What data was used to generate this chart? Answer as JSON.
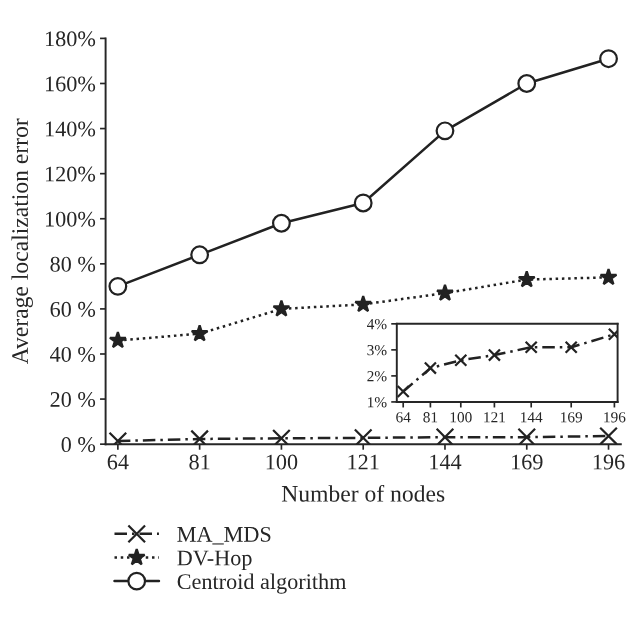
{
  "chart_data": [
    {
      "type": "line",
      "xlabel": "Number of nodes",
      "ylabel": "Average localization error",
      "categories": [
        "64",
        "81",
        "100",
        "121",
        "144",
        "169",
        "196"
      ],
      "series": [
        {
          "name": "MA_MDS",
          "color": "#222222",
          "marker": "cross",
          "line_style": "dashed",
          "values": [
            1.4,
            2.3,
            2.6,
            2.8,
            3.1,
            3.1,
            3.6
          ]
        },
        {
          "name": "DV-Hop",
          "color": "#222222",
          "marker": "star",
          "line_style": "dotted",
          "values": [
            46,
            49,
            60,
            62,
            67,
            73,
            74
          ]
        },
        {
          "name": "Centroid algorithm",
          "color": "#222222",
          "marker": "circle",
          "line_style": "solid",
          "values": [
            70,
            84,
            98,
            107,
            139,
            160,
            171
          ]
        }
      ],
      "ylim": [
        0,
        180
      ],
      "yticks": [
        {
          "value": 0,
          "label": "0 %"
        },
        {
          "value": 20,
          "label": "20 %"
        },
        {
          "value": 40,
          "label": "40 %"
        },
        {
          "value": 60,
          "label": "60 %"
        },
        {
          "value": 80,
          "label": "80 %"
        },
        {
          "value": 100,
          "label": "100%"
        },
        {
          "value": 120,
          "label": "120%"
        },
        {
          "value": 140,
          "label": "140%"
        },
        {
          "value": 160,
          "label": "160%"
        },
        {
          "value": 180,
          "label": "180%"
        }
      ],
      "grid": false,
      "legend": "bottom left"
    },
    {
      "type": "line",
      "x": [
        64,
        81,
        100,
        121,
        144,
        169,
        196
      ],
      "series": [
        {
          "color": "#222222",
          "marker": "cross",
          "line_style": "dashed",
          "values": [
            1.4,
            2.3,
            2.6,
            2.8,
            3.1,
            3.1,
            3.6
          ]
        }
      ],
      "xlim": [
        60,
        198
      ],
      "xticks": [
        64,
        81,
        100,
        121,
        144,
        169,
        196
      ],
      "ylim": [
        1,
        4
      ],
      "yticks": [
        {
          "value": 1,
          "label": "1%"
        },
        {
          "value": 2,
          "label": "2%"
        },
        {
          "value": 3,
          "label": "3%"
        },
        {
          "value": 4,
          "label": "4%"
        }
      ],
      "grid": false
    }
  ]
}
